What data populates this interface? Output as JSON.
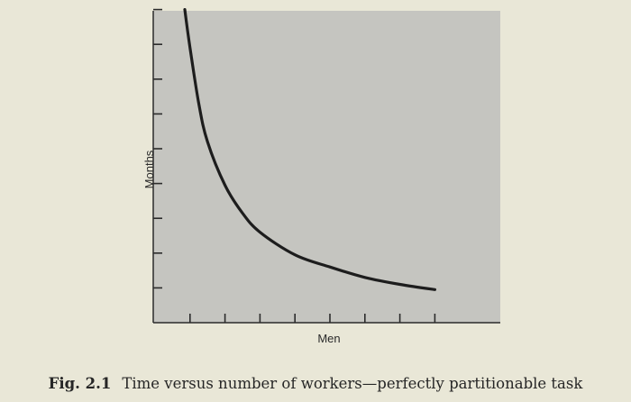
{
  "chart_data": {
    "type": "line",
    "title": "",
    "xlabel": "Men",
    "ylabel": "Months",
    "x_ticks": 8,
    "y_ticks": 9,
    "xlim": [
      0,
      8.5
    ],
    "ylim": [
      0,
      9
    ],
    "grid": false,
    "series": [
      {
        "x": [
          0.85,
          1.0,
          1.25,
          1.5,
          2.0,
          2.5,
          3.0,
          4.0,
          5.0,
          6.0,
          7.0,
          8.0
        ],
        "y": [
          9.0,
          7.9,
          6.3,
          5.2,
          3.95,
          3.15,
          2.6,
          1.95,
          1.6,
          1.3,
          1.1,
          0.95
        ]
      }
    ]
  },
  "caption": {
    "number": "Fig. 2.1",
    "text": "Time versus number of workers—perfectly partitionable task"
  },
  "colors": {
    "plot_background": "#c5c5c0",
    "page_background": "#e9e7d7",
    "curve": "#1d1d1d"
  }
}
